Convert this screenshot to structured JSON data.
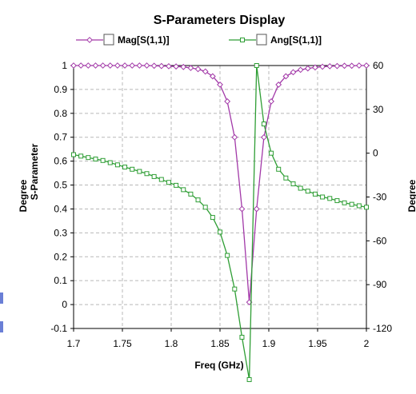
{
  "colors": {
    "mag": "#a239a8",
    "ang": "#2f9e35",
    "grid": "#b8b8b8",
    "axis": "#000000"
  },
  "chart_data": {
    "type": "line",
    "title": "S-Parameters Display",
    "xlabel": "Freq (GHz)",
    "ylabel_left": [
      "Degree",
      "S-Parameter"
    ],
    "ylabel_right": "Degree",
    "xlim": [
      1.7,
      2.0
    ],
    "ylim_left": [
      -0.1,
      1.0
    ],
    "ylim_right": [
      -120,
      60
    ],
    "x_ticks": [
      "1.7",
      "1.75",
      "1.8",
      "1.85",
      "1.9",
      "1.95",
      "2"
    ],
    "y_ticks_left": [
      "-0.1",
      "0",
      "0.1",
      "0.2",
      "0.3",
      "0.4",
      "0.5",
      "0.6",
      "0.7",
      "0.8",
      "0.9",
      "1"
    ],
    "y_ticks_right": [
      "-120",
      "-90",
      "-60",
      "-30",
      "0",
      "30",
      "60"
    ],
    "grid": true,
    "legend_position": "top",
    "x": [
      1.7,
      1.7075,
      1.715,
      1.7225,
      1.73,
      1.7375,
      1.745,
      1.7525,
      1.76,
      1.7675,
      1.775,
      1.7825,
      1.79,
      1.7975,
      1.805,
      1.8125,
      1.82,
      1.8275,
      1.835,
      1.8425,
      1.85,
      1.8575,
      1.865,
      1.8725,
      1.88,
      1.8875,
      1.895,
      1.9025,
      1.91,
      1.9175,
      1.925,
      1.9325,
      1.94,
      1.9475,
      1.955,
      1.9625,
      1.97,
      1.9775,
      1.985,
      1.9925,
      2.0
    ],
    "series": [
      {
        "name": "Mag[S(1,1)]",
        "axis": "left",
        "marker": "diamond",
        "values": [
          1.0,
          1.0,
          1.0,
          1.0,
          1.0,
          1.0,
          1.0,
          1.0,
          1.0,
          1.0,
          1.0,
          0.999,
          0.998,
          0.997,
          0.996,
          0.994,
          0.99,
          0.985,
          0.975,
          0.955,
          0.92,
          0.85,
          0.7,
          0.4,
          0.01,
          0.4,
          0.7,
          0.85,
          0.92,
          0.955,
          0.972,
          0.982,
          0.988,
          0.992,
          0.995,
          0.997,
          0.998,
          0.999,
          0.999,
          1.0,
          1.0
        ]
      },
      {
        "name": "Ang[S(1,1)]",
        "axis": "right",
        "marker": "square",
        "values": [
          -1,
          -2,
          -3,
          -4,
          -5,
          -6.5,
          -8,
          -9.5,
          -11,
          -12.5,
          -14,
          -16,
          -18,
          -20,
          -22,
          -25,
          -28,
          -32,
          -37,
          -44,
          -54,
          -70,
          -93,
          -126,
          -155,
          60,
          20,
          0,
          -11,
          -17,
          -21,
          -24,
          -26,
          -28,
          -30,
          -31,
          -32.5,
          -34,
          -35,
          -36,
          -37
        ]
      }
    ]
  }
}
